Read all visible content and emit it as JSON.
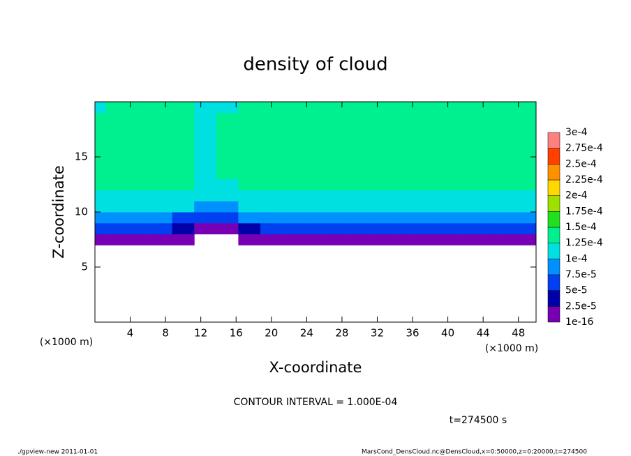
{
  "chart_data": {
    "type": "heatmap",
    "title": "density of cloud",
    "x_label": "X-coordinate",
    "y_label": "Z-coordinate",
    "x_unit_left": "(×1000 m)",
    "x_unit_right": "(×1000 m)",
    "contour_note": "CONTOUR INTERVAL = 1.000E-04",
    "time_label": "t=274500 s",
    "footer_left": "./gpview-new  2011-01-01",
    "footer_right": "MarsCond_DensCloud.nc@DensCloud,x=0:50000,z=0:20000,t=274500",
    "xlim": [
      0,
      50
    ],
    "ylim": [
      0,
      20
    ],
    "xticks": [
      4,
      8,
      12,
      16,
      20,
      24,
      28,
      32,
      36,
      40,
      44,
      48
    ],
    "yticks": [
      5,
      10,
      15
    ],
    "x": [
      0,
      2.5,
      5,
      7.5,
      10,
      12.5,
      15,
      17.5,
      20,
      22.5,
      25,
      27.5,
      30,
      32.5,
      35,
      37.5,
      40,
      42.5,
      45,
      47.5,
      50
    ],
    "y": [
      7.5,
      8.5,
      9.5,
      10.5,
      11.5,
      12.5,
      13.5,
      14.5,
      15.5,
      16.5,
      17.5,
      18.5,
      19.5
    ],
    "z": [
      [
        1e-05,
        1e-05,
        1e-05,
        1e-05,
        2e-05,
        null,
        null,
        2e-05,
        1e-05,
        1e-05,
        1e-05,
        1e-05,
        1e-05,
        1e-05,
        1e-05,
        1e-05,
        1e-05,
        1e-05,
        1e-05,
        1e-05,
        1e-05
      ],
      [
        5e-05,
        5e-05,
        5e-05,
        5e-05,
        3e-05,
        1e-05,
        2e-05,
        4e-05,
        5e-05,
        5e-05,
        5e-05,
        5e-05,
        5e-05,
        5e-05,
        5e-05,
        5e-05,
        5e-05,
        5e-05,
        5e-05,
        5e-05,
        5e-05
      ],
      [
        8.5e-05,
        8.5e-05,
        8.5e-05,
        8.5e-05,
        7e-05,
        5e-05,
        6e-05,
        8e-05,
        8.5e-05,
        8.5e-05,
        8.5e-05,
        8.5e-05,
        8.5e-05,
        8.5e-05,
        8.5e-05,
        8.5e-05,
        8.5e-05,
        8.5e-05,
        8.5e-05,
        8.5e-05,
        8.5e-05
      ],
      [
        0.00011,
        0.00011,
        0.00011,
        0.00011,
        0.000105,
        8e-05,
        9e-05,
        0.000105,
        0.00011,
        0.00011,
        0.00011,
        0.00011,
        0.00011,
        0.00011,
        0.00011,
        0.00011,
        0.00011,
        0.00011,
        0.00011,
        0.00011,
        0.00011
      ],
      [
        0.00012,
        0.00012,
        0.00012,
        0.00012,
        0.00012,
        0.000102,
        0.000105,
        0.00012,
        0.00012,
        0.00012,
        0.00012,
        0.00012,
        0.00012,
        0.00012,
        0.00012,
        0.00012,
        0.00012,
        0.00012,
        0.00012,
        0.00012,
        0.00012
      ],
      [
        0.00013,
        0.00013,
        0.00013,
        0.00013,
        0.00013,
        0.00011,
        0.00012,
        0.00013,
        0.00013,
        0.00013,
        0.00013,
        0.00013,
        0.00013,
        0.00013,
        0.00013,
        0.00013,
        0.00013,
        0.00013,
        0.00013,
        0.00013,
        0.00013
      ],
      [
        0.000135,
        0.000135,
        0.000135,
        0.000135,
        0.000135,
        0.000115,
        0.000125,
        0.000135,
        0.000135,
        0.000135,
        0.000135,
        0.000135,
        0.000135,
        0.000135,
        0.000135,
        0.000135,
        0.000135,
        0.000135,
        0.000135,
        0.000135,
        0.000135
      ],
      [
        0.000138,
        0.000138,
        0.000138,
        0.000138,
        0.000138,
        0.000115,
        0.000125,
        0.000138,
        0.000138,
        0.000138,
        0.000138,
        0.000138,
        0.000138,
        0.000138,
        0.000138,
        0.000138,
        0.000138,
        0.000138,
        0.000138,
        0.000138,
        0.000138
      ],
      [
        0.000138,
        0.000138,
        0.000138,
        0.000138,
        0.000138,
        0.000115,
        0.000125,
        0.000138,
        0.000138,
        0.000138,
        0.000138,
        0.000138,
        0.000138,
        0.000138,
        0.000138,
        0.000138,
        0.000138,
        0.000138,
        0.000138,
        0.000138,
        0.000138
      ],
      [
        0.000135,
        0.000135,
        0.000135,
        0.000135,
        0.000135,
        0.000115,
        0.000125,
        0.000135,
        0.000135,
        0.000135,
        0.000135,
        0.000135,
        0.000135,
        0.000135,
        0.000135,
        0.000135,
        0.000135,
        0.000135,
        0.000135,
        0.000135,
        0.000135
      ],
      [
        0.000132,
        0.000132,
        0.000132,
        0.000132,
        0.000132,
        0.000115,
        0.000125,
        0.000132,
        0.000132,
        0.000132,
        0.000132,
        0.000132,
        0.000132,
        0.000132,
        0.000132,
        0.000132,
        0.000132,
        0.000132,
        0.000132,
        0.000132,
        0.000132
      ],
      [
        0.00013,
        0.00013,
        0.00013,
        0.00013,
        0.00013,
        0.000115,
        0.000125,
        0.00013,
        0.00013,
        0.00013,
        0.00013,
        0.00013,
        0.00013,
        0.00013,
        0.00013,
        0.00013,
        0.00013,
        0.00013,
        0.00013,
        0.00013,
        0.00013
      ],
      [
        0.000122,
        0.000128,
        0.000128,
        0.000128,
        0.000128,
        0.000115,
        0.00012,
        0.000128,
        0.000128,
        0.000128,
        0.000128,
        0.000128,
        0.000128,
        0.000128,
        0.000128,
        0.000128,
        0.000128,
        0.000128,
        0.000128,
        0.000128,
        0.000128
      ]
    ],
    "levels": [
      {
        "value": 1e-16,
        "label": "1e-16"
      },
      {
        "value": 2.5e-05,
        "label": "2.5e-5"
      },
      {
        "value": 5e-05,
        "label": "5e-5"
      },
      {
        "value": 7.5e-05,
        "label": "7.5e-5"
      },
      {
        "value": 0.0001,
        "label": "1e-4"
      },
      {
        "value": 0.000125,
        "label": "1.25e-4"
      },
      {
        "value": 0.00015,
        "label": "1.5e-4"
      },
      {
        "value": 0.000175,
        "label": "1.75e-4"
      },
      {
        "value": 0.0002,
        "label": "2e-4"
      },
      {
        "value": 0.000225,
        "label": "2.25e-4"
      },
      {
        "value": 0.00025,
        "label": "2.5e-4"
      },
      {
        "value": 0.000275,
        "label": "2.75e-4"
      },
      {
        "value": 0.0003,
        "label": "3e-4"
      }
    ],
    "colors": [
      "#7800b4",
      "#0000a8",
      "#0040f0",
      "#0090ff",
      "#00e0e0",
      "#00f090",
      "#20e020",
      "#a0e000",
      "#ffd800",
      "#ff9000",
      "#ff4000",
      "#ff8080"
    ]
  }
}
